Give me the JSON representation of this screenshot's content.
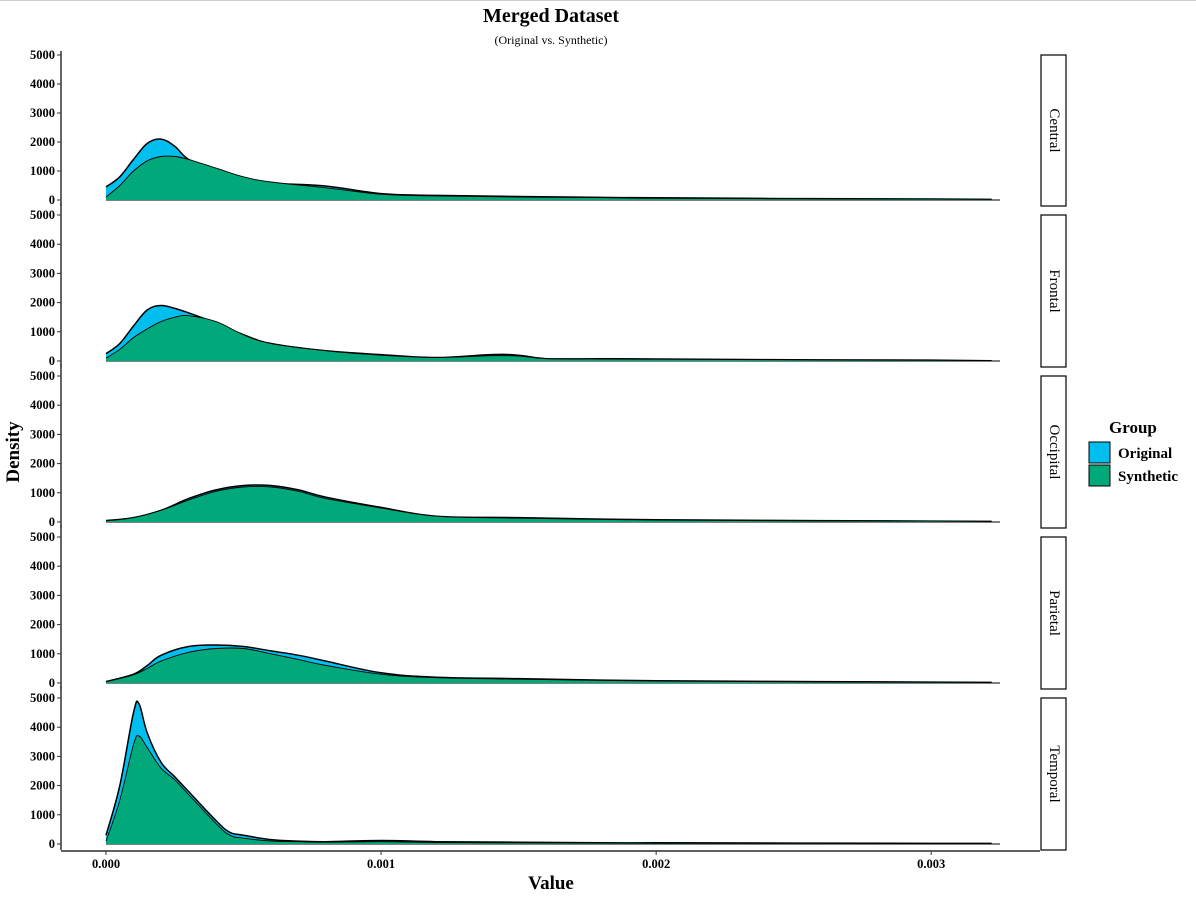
{
  "chart_data": {
    "type": "area",
    "subtype": "faceted-density",
    "title": "Merged Dataset",
    "subtitle": "(Original vs. Synthetic)",
    "xlabel": "Value",
    "ylabel": "Density",
    "xlim": [
      0,
      0.00325
    ],
    "ylim": [
      0,
      5000
    ],
    "x_ticks": [
      0,
      0.001,
      0.002,
      0.003
    ],
    "x_tick_labels": [
      "0.000",
      "0.001",
      "0.002",
      "0.003"
    ],
    "y_ticks": [
      0,
      1000,
      2000,
      3000,
      4000,
      5000
    ],
    "y_tick_labels": [
      "0",
      "1000",
      "2000",
      "3000",
      "4000",
      "5000"
    ],
    "grid": false,
    "legend": {
      "title": "Group",
      "position": "right",
      "items": [
        {
          "name": "Original",
          "color": "#00BFEF"
        },
        {
          "name": "Synthetic",
          "color": "#00A87A"
        }
      ]
    },
    "facets": [
      {
        "label": "Central",
        "series": [
          {
            "name": "Original",
            "x": [
              0,
              5e-05,
              0.0001,
              0.00015,
              0.0002,
              0.00025,
              0.0003,
              0.0004,
              0.0005,
              0.0006,
              0.0008,
              0.001,
              0.0012,
              0.0015,
              0.0018,
              0.002,
              0.0025,
              0.003,
              0.00322
            ],
            "y": [
              450,
              800,
              1400,
              1950,
              2100,
              1850,
              1400,
              950,
              700,
              580,
              480,
              220,
              160,
              120,
              90,
              75,
              50,
              35,
              20
            ]
          },
          {
            "name": "Synthetic",
            "x": [
              0,
              5e-05,
              0.0001,
              0.00015,
              0.0002,
              0.00025,
              0.0003,
              0.0004,
              0.0005,
              0.0006,
              0.0008,
              0.001,
              0.0012,
              0.0015,
              0.0018,
              0.002,
              0.0025,
              0.003,
              0.00322
            ],
            "y": [
              100,
              500,
              1000,
              1350,
              1500,
              1500,
              1400,
              1100,
              800,
              620,
              420,
              200,
              140,
              100,
              80,
              60,
              40,
              30,
              20
            ]
          }
        ]
      },
      {
        "label": "Frontal",
        "series": [
          {
            "name": "Original",
            "x": [
              0,
              5e-05,
              0.0001,
              0.00015,
              0.0002,
              0.00025,
              0.0003,
              0.0004,
              0.0005,
              0.0006,
              0.0008,
              0.001,
              0.0012,
              0.0014,
              0.0015,
              0.0016,
              0.0018,
              0.002,
              0.0025,
              0.003,
              0.00322
            ],
            "y": [
              250,
              600,
              1200,
              1750,
              1900,
              1800,
              1650,
              1300,
              900,
              600,
              350,
              220,
              120,
              220,
              200,
              80,
              80,
              70,
              40,
              30,
              10
            ]
          },
          {
            "name": "Synthetic",
            "x": [
              0,
              5e-05,
              0.0001,
              0.00015,
              0.0002,
              0.00025,
              0.0003,
              0.0004,
              0.0005,
              0.0006,
              0.0008,
              0.001,
              0.0012,
              0.0014,
              0.0015,
              0.0016,
              0.0018,
              0.002,
              0.0025,
              0.003,
              0.00322
            ],
            "y": [
              100,
              400,
              800,
              1100,
              1350,
              1500,
              1550,
              1350,
              900,
              600,
              350,
              200,
              120,
              180,
              170,
              80,
              70,
              60,
              40,
              25,
              10
            ]
          }
        ]
      },
      {
        "label": "Occipital",
        "series": [
          {
            "name": "Original",
            "x": [
              0,
              0.0001,
              0.0002,
              0.0003,
              0.0004,
              0.0005,
              0.0006,
              0.0007,
              0.0008,
              0.001,
              0.0012,
              0.0015,
              0.0018,
              0.002,
              0.0025,
              0.003,
              0.00322
            ],
            "y": [
              50,
              150,
              400,
              800,
              1100,
              1250,
              1250,
              1100,
              850,
              500,
              200,
              150,
              100,
              80,
              50,
              30,
              20
            ]
          },
          {
            "name": "Synthetic",
            "x": [
              0,
              0.0001,
              0.0002,
              0.0003,
              0.0004,
              0.0005,
              0.0006,
              0.0007,
              0.0008,
              0.001,
              0.0012,
              0.0015,
              0.0018,
              0.002,
              0.0025,
              0.003,
              0.00322
            ],
            "y": [
              40,
              150,
              400,
              750,
              1050,
              1200,
              1200,
              1050,
              800,
              480,
              200,
              130,
              90,
              70,
              40,
              30,
              15
            ]
          }
        ]
      },
      {
        "label": "Parietal",
        "series": [
          {
            "name": "Original",
            "x": [
              0,
              0.0001,
              0.00015,
              0.0002,
              0.0003,
              0.0004,
              0.0005,
              0.0006,
              0.0007,
              0.0008,
              0.001,
              0.0012,
              0.0015,
              0.0018,
              0.002,
              0.0025,
              0.003,
              0.00322
            ],
            "y": [
              50,
              300,
              600,
              950,
              1250,
              1300,
              1250,
              1100,
              950,
              750,
              350,
              200,
              150,
              100,
              80,
              50,
              30,
              20
            ]
          },
          {
            "name": "Synthetic",
            "x": [
              0,
              0.0001,
              0.00015,
              0.0002,
              0.0003,
              0.0004,
              0.0005,
              0.0006,
              0.0007,
              0.0008,
              0.001,
              0.0012,
              0.0015,
              0.0018,
              0.002,
              0.0025,
              0.003,
              0.00322
            ],
            "y": [
              40,
              280,
              500,
              750,
              1050,
              1180,
              1180,
              1000,
              800,
              600,
              300,
              180,
              130,
              90,
              70,
              40,
              25,
              15
            ]
          }
        ]
      },
      {
        "label": "Temporal",
        "series": [
          {
            "name": "Original",
            "x": [
              0,
              5e-05,
              0.0001,
              0.00012,
              0.00015,
              0.0002,
              0.00025,
              0.0003,
              0.0004,
              0.00045,
              0.0005,
              0.0006,
              0.0007,
              0.0008,
              0.001,
              0.0012,
              0.0015,
              0.0018,
              0.002,
              0.0025,
              0.003,
              0.00322
            ],
            "y": [
              300,
              2000,
              4500,
              4800,
              3800,
              2800,
              2300,
              1800,
              800,
              400,
              300,
              150,
              100,
              80,
              120,
              80,
              60,
              40,
              40,
              30,
              20,
              20
            ]
          },
          {
            "name": "Synthetic",
            "x": [
              0,
              5e-05,
              0.0001,
              0.00012,
              0.00015,
              0.0002,
              0.00025,
              0.0003,
              0.0004,
              0.00045,
              0.0005,
              0.0006,
              0.0007,
              0.0008,
              0.001,
              0.0012,
              0.0015,
              0.0018,
              0.002,
              0.0025,
              0.003,
              0.00322
            ],
            "y": [
              100,
              1500,
              3400,
              3700,
              3300,
              2600,
              2200,
              1700,
              700,
              300,
              200,
              100,
              80,
              60,
              80,
              50,
              40,
              30,
              25,
              20,
              15,
              10
            ]
          }
        ]
      }
    ]
  }
}
